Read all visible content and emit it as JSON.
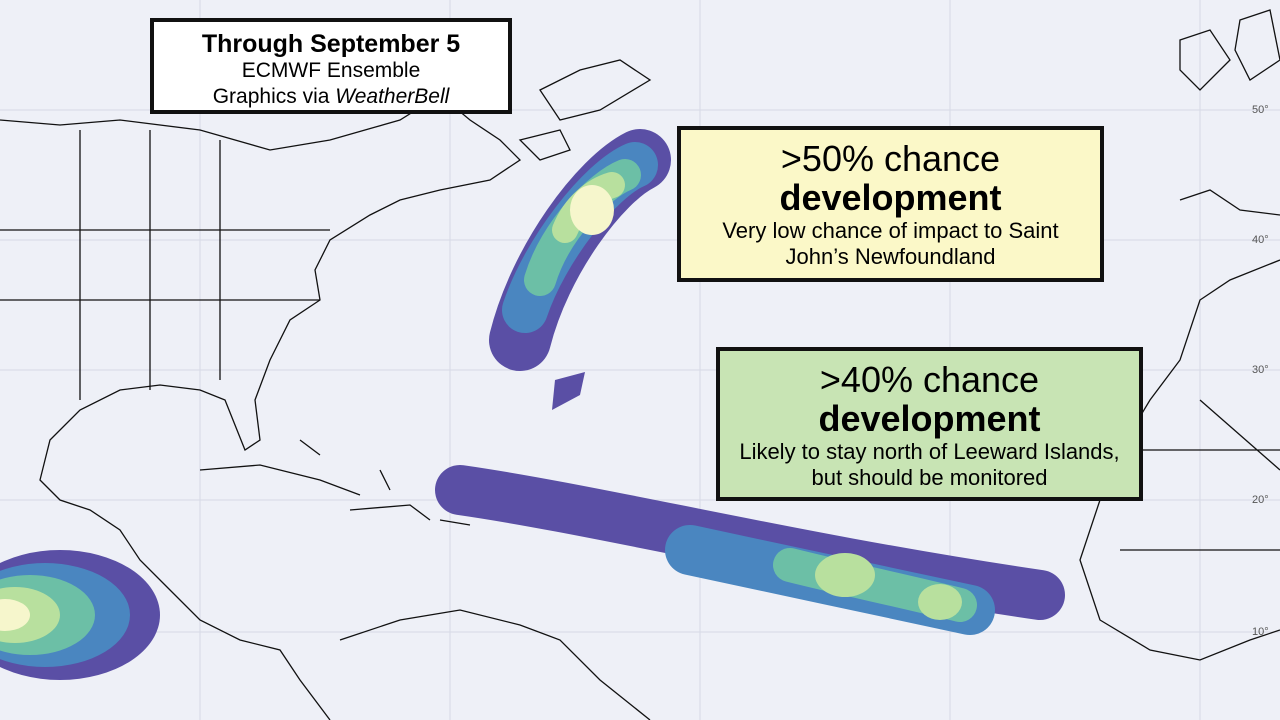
{
  "title_box": {
    "line1": "Through September 5",
    "line2": "ECMWF Ensemble",
    "line3_prefix": "Graphics via ",
    "line3_emphasis": "WeatherBell"
  },
  "callouts": [
    {
      "chance": ">50% chance",
      "headline": "development",
      "detail": "Very low chance of impact to Saint John’s Newfoundland"
    },
    {
      "chance": ">40% chance",
      "headline": "development",
      "detail": "Likely to stay north of Leeward Islands, but should be monitored"
    }
  ],
  "latitude_labels": [
    "50°",
    "40°",
    "30°",
    "20°",
    "10°"
  ]
}
